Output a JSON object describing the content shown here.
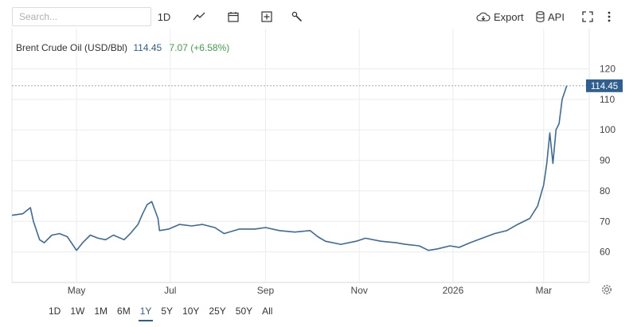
{
  "toolbar": {
    "search_placeholder": "Search...",
    "interval_label": "1D",
    "export_label": "Export",
    "api_label": "API"
  },
  "header": {
    "name": "Brent Crude Oil (USD/Bbl)",
    "price": "114.45",
    "change": "7.07 (+6.58%)",
    "change_color": "#3fa14a"
  },
  "price_tag": "114.45",
  "timeframes": [
    "1D",
    "1W",
    "1M",
    "6M",
    "1Y",
    "5Y",
    "10Y",
    "25Y",
    "50Y",
    "All"
  ],
  "active_timeframe": "1Y",
  "chart_data": {
    "type": "line",
    "series": [
      {
        "color": "#3a6b9a",
        "x": [
          "2025-03-20",
          "2025-03-27",
          "2025-04-01",
          "2025-04-03",
          "2025-04-07",
          "2025-04-10",
          "2025-04-15",
          "2025-04-20",
          "2025-04-25",
          "2025-05-01",
          "2025-05-05",
          "2025-05-10",
          "2025-05-15",
          "2025-05-20",
          "2025-05-25",
          "2025-06-01",
          "2025-06-05",
          "2025-06-10",
          "2025-06-13",
          "2025-06-16",
          "2025-06-19",
          "2025-06-23",
          "2025-06-24",
          "2025-06-30",
          "2025-07-07",
          "2025-07-15",
          "2025-07-22",
          "2025-07-30",
          "2025-08-05",
          "2025-08-15",
          "2025-08-25",
          "2025-09-01",
          "2025-09-10",
          "2025-09-20",
          "2025-09-30",
          "2025-10-05",
          "2025-10-10",
          "2025-10-20",
          "2025-10-30",
          "2025-11-05",
          "2025-11-15",
          "2025-11-25",
          "2025-12-01",
          "2025-12-10",
          "2025-12-16",
          "2025-12-22",
          "2025-12-30",
          "2026-01-05",
          "2026-01-12",
          "2026-01-20",
          "2026-01-28",
          "2026-02-05",
          "2026-02-12",
          "2026-02-20",
          "2026-02-25",
          "2026-03-01",
          "2026-03-03",
          "2026-03-05",
          "2026-03-07",
          "2026-03-09",
          "2026-03-11",
          "2026-03-13",
          "2026-03-16"
        ],
        "y": [
          72,
          72.5,
          74.5,
          70,
          64,
          63,
          65.5,
          66,
          65,
          60.5,
          63,
          65.5,
          64.5,
          64,
          65.5,
          64,
          66,
          69,
          72.5,
          75.5,
          76.5,
          71,
          67,
          67.5,
          69,
          68.5,
          69,
          68,
          66,
          67.5,
          67.5,
          68,
          67,
          66.5,
          67,
          65,
          63.5,
          62.5,
          63.5,
          64.5,
          63.5,
          63,
          62.5,
          62,
          60.5,
          61,
          62,
          61.5,
          63,
          64.5,
          66,
          67,
          69,
          71,
          75,
          82,
          89,
          99,
          89,
          100,
          102,
          110,
          114.45
        ]
      }
    ],
    "y_ticks": [
      60,
      70,
      80,
      90,
      100,
      110,
      120
    ],
    "x_ticks": [
      {
        "label": "May",
        "date": "2025-05-01"
      },
      {
        "label": "Jul",
        "date": "2025-07-01"
      },
      {
        "label": "Sep",
        "date": "2025-09-01"
      },
      {
        "label": "Nov",
        "date": "2025-11-01"
      },
      {
        "label": "2026",
        "date": "2026-01-01"
      },
      {
        "label": "Mar",
        "date": "2026-03-01"
      }
    ],
    "ylim": [
      50,
      123
    ],
    "xlim": [
      "2025-03-20",
      "2026-03-27"
    ],
    "grid": true,
    "reference_line": 114.45
  }
}
